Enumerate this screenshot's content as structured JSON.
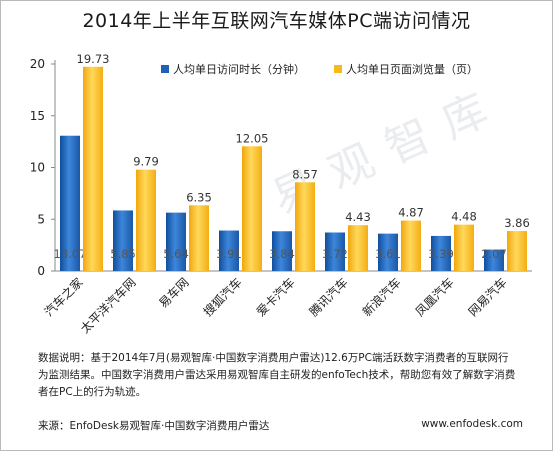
{
  "title": "2014年上半年互联网汽车媒体PC端访问情况",
  "chart_data": {
    "type": "bar",
    "categories": [
      "汽车之家",
      "太平洋汽车网",
      "易车网",
      "搜狐汽车",
      "爱卡汽车",
      "腾讯汽车",
      "新浪汽车",
      "凤凰汽车",
      "网易汽车"
    ],
    "series": [
      {
        "name": "人均单日访问时长（分钟）",
        "values": [
          13.07,
          5.85,
          5.64,
          3.91,
          3.84,
          3.72,
          3.61,
          3.39,
          2.07
        ],
        "color": "#1f62b5"
      },
      {
        "name": "人均单日页面浏览量（页）",
        "values": [
          19.73,
          9.79,
          6.35,
          12.05,
          8.57,
          4.43,
          4.87,
          4.48,
          3.86
        ],
        "color": "#f7b81c"
      }
    ],
    "yticks": [
      "0",
      "5",
      "10",
      "15",
      "20"
    ],
    "ylim": [
      0,
      20
    ],
    "legend": "top-right",
    "grid": false
  },
  "note": "数据说明：基于2014年7月(易观智库·中国数字消费用户雷达)12.6万PC端活跃数字消费者的互联网行为监测结果。中国数字消费用户雷达采用易观智库自主研发的enfoTech技术，帮助您有效了解数字消费者在PC上的行为轨迹。",
  "source": "来源：EnfoDesk易观智库·中国数字消费用户雷达",
  "site": "www.enfodesk.com",
  "watermark": "易观智库"
}
